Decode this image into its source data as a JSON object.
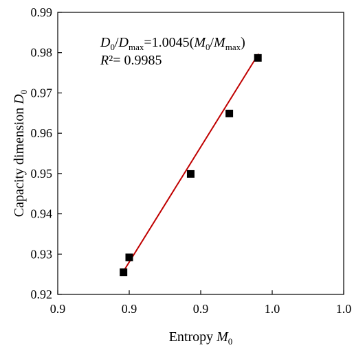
{
  "chart_data": {
    "type": "scatter",
    "xlabel_text": "Entropy ",
    "xlabel_var": "M",
    "xlabel_sub": "0",
    "ylabel_text": "Capacity dimension ",
    "ylabel_var": "D",
    "ylabel_sub": "0",
    "x_ticks": [
      "0.9",
      "0.9",
      "0.9",
      "1.0",
      "1.0"
    ],
    "y_ticks": [
      "0.92",
      "0.93",
      "0.94",
      "0.95",
      "0.96",
      "0.97",
      "0.98",
      "0.99"
    ],
    "xlim": [
      0.86,
      1.06
    ],
    "ylim": [
      0.92,
      0.99
    ],
    "grid": false,
    "series": [
      {
        "x": [
          0.906,
          0.91,
          0.953,
          0.98,
          1.0
        ],
        "y": [
          0.9255,
          0.9292,
          0.9499,
          0.9649,
          0.9787
        ]
      }
    ],
    "trendline": {
      "x": [
        0.906,
        1.0
      ],
      "color": "#c00000",
      "equation": {
        "D": "D",
        "sub0": "0",
        "slash": "/",
        "Dmax_sub": "max",
        "mid": "=1.0045(",
        "M": "M",
        "close": ")",
        "R": "R",
        "r2_rest": "²= 0.9985"
      }
    },
    "marker_color": "#000000"
  }
}
